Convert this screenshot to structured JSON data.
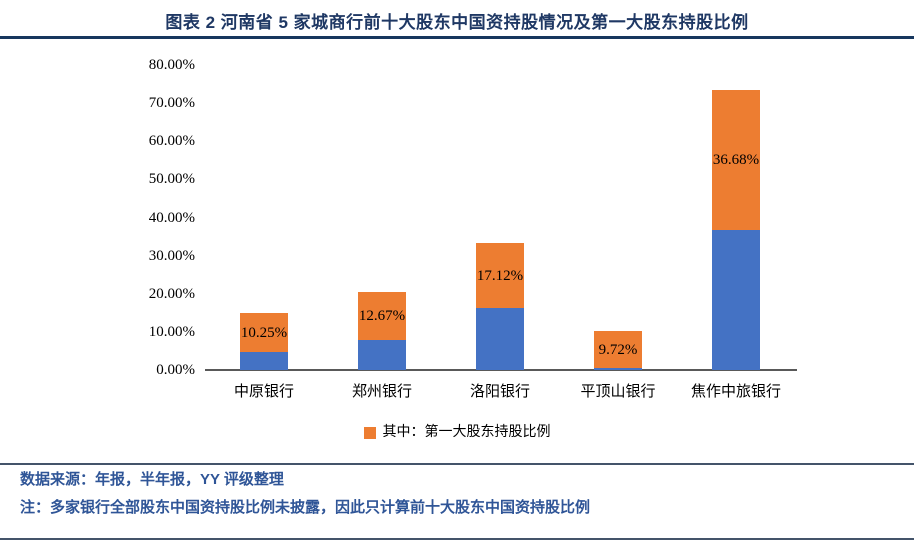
{
  "header": {
    "title": "图表 2 河南省 5 家城商行前十大股东中国资持股情况及第一大股东持股比例"
  },
  "chart_data": {
    "type": "bar",
    "stacked": true,
    "title": "图表 2 河南省 5 家城商行前十大股东中国资持股情况及第一大股东持股比例",
    "xlabel": "",
    "ylabel": "",
    "categories": [
      "中原银行",
      "郑州银行",
      "洛阳银行",
      "平顶山银行",
      "焦作中旅银行"
    ],
    "series": [
      {
        "id": "other-top10-holders",
        "label": "",
        "color": "#4472C4",
        "show_labels": false,
        "estimated": true,
        "values": [
          4.6,
          7.9,
          16.2,
          0.5,
          36.8
        ]
      },
      {
        "id": "largest-shareholder",
        "label": "其中：第一大股东持股比例",
        "color": "#ED7D31",
        "show_labels": true,
        "estimated": false,
        "values": [
          10.25,
          12.67,
          17.12,
          9.72,
          36.68
        ]
      }
    ],
    "value_labels": [
      "10.25%",
      "12.67%",
      "17.12%",
      "9.72%",
      "36.68%"
    ],
    "ylim": [
      0,
      80
    ],
    "ytick_step": 10,
    "ytick_labels": [
      "0.00%",
      "10.00%",
      "20.00%",
      "30.00%",
      "40.00%",
      "50.00%",
      "60.00%",
      "70.00%",
      "80.00%"
    ],
    "grid": false,
    "legend": {
      "position": "bottom",
      "entries": [
        {
          "label": "其中：第一大股东持股比例",
          "color": "#ED7D31"
        }
      ]
    }
  },
  "footer": {
    "source": "数据来源：年报，半年报，YY 评级整理",
    "note": "注：多家银行全部股东中国资持股比例未披露，因此只计算前十大股东中国资持股比例"
  },
  "colors": {
    "title_text": "#1F3864",
    "bar_blue": "#4472C4",
    "bar_orange": "#ED7D31",
    "footer_text": "#2F5597",
    "heavy_rule": "#17375E",
    "light_rule": "#44546A",
    "axis_line": "#595959",
    "background": "#FFFFFF"
  }
}
